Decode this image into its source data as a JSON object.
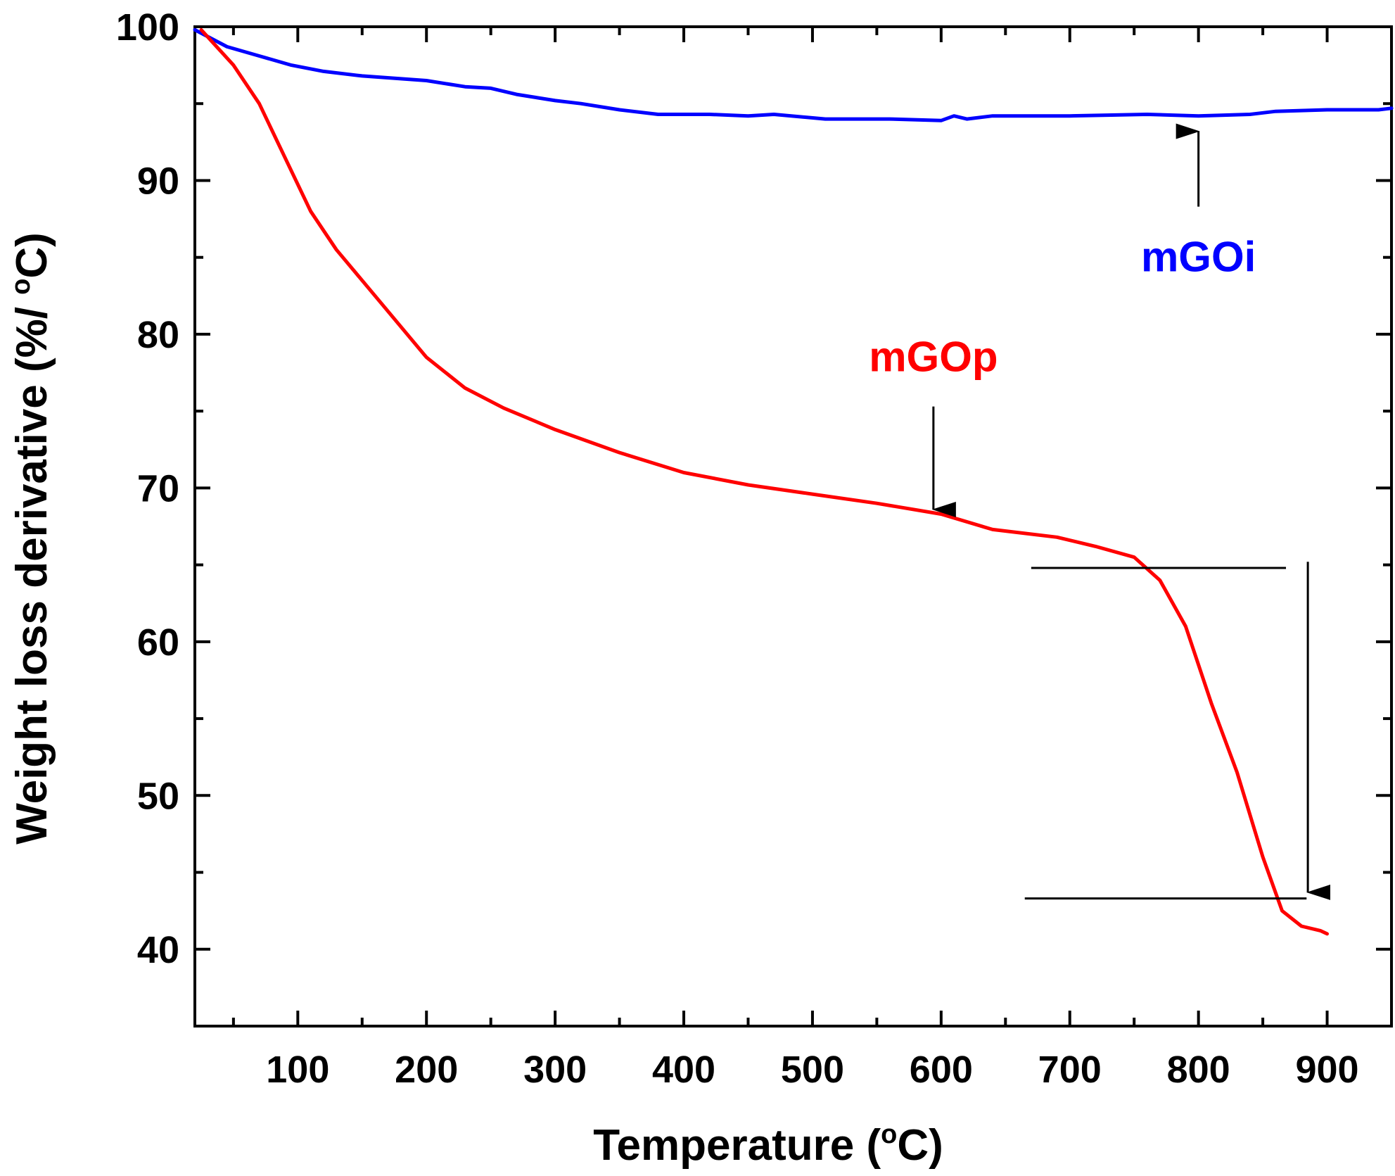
{
  "chart_data": {
    "type": "line",
    "title": "",
    "xlabel": {
      "main": "Temperature (",
      "sup": "o",
      "end": "C)"
    },
    "ylabel": {
      "main": "Weight loss derivative (%/ ",
      "sup": "o",
      "end": "C)"
    },
    "xlim": [
      20,
      950
    ],
    "ylim": [
      35,
      100
    ],
    "xticks": [
      100,
      200,
      300,
      400,
      500,
      600,
      700,
      800,
      900
    ],
    "xtick_labels": [
      "100",
      "200",
      "300",
      "400",
      "500",
      "600",
      "700",
      "800",
      "900"
    ],
    "yticks": [
      40,
      50,
      60,
      70,
      80,
      90,
      100
    ],
    "ytick_labels": [
      "40",
      "50",
      "60",
      "70",
      "80",
      "90",
      "100"
    ],
    "series": [
      {
        "name": "mGOi",
        "color": "#0000ff",
        "x": [
          20,
          45,
          70,
          95,
          120,
          150,
          200,
          230,
          250,
          270,
          300,
          320,
          350,
          380,
          420,
          450,
          470,
          510,
          560,
          600,
          610,
          620,
          640,
          700,
          760,
          800,
          840,
          860,
          900,
          940,
          950
        ],
        "y": [
          99.8,
          98.7,
          98.1,
          97.5,
          97.1,
          96.8,
          96.5,
          96.1,
          96.0,
          95.6,
          95.2,
          95.0,
          94.6,
          94.3,
          94.3,
          94.2,
          94.3,
          94.0,
          94.0,
          93.9,
          94.2,
          94.0,
          94.2,
          94.2,
          94.3,
          94.2,
          94.3,
          94.5,
          94.6,
          94.6,
          94.7
        ]
      },
      {
        "name": "mGOp",
        "color": "#ff0000",
        "x": [
          25,
          50,
          70,
          90,
          110,
          130,
          165,
          200,
          230,
          260,
          300,
          350,
          400,
          450,
          500,
          550,
          600,
          640,
          690,
          720,
          750,
          770,
          790,
          810,
          830,
          850,
          865,
          880,
          895,
          900
        ],
        "y": [
          99.8,
          97.5,
          95.0,
          91.5,
          88.0,
          85.5,
          82.0,
          78.5,
          76.5,
          75.2,
          73.8,
          72.3,
          71.0,
          70.2,
          69.6,
          69.0,
          68.3,
          67.3,
          66.8,
          66.2,
          65.5,
          64.0,
          61.0,
          56.0,
          51.5,
          46.0,
          42.5,
          41.5,
          41.2,
          41.0
        ]
      }
    ],
    "annotations": {
      "mGOi": {
        "text": "mGOi",
        "arrow_from": [
          800,
          88.3
        ],
        "arrow_to": [
          800,
          93.2
        ],
        "label_at": [
          800,
          85.0
        ]
      },
      "mGOp": {
        "text": "mGOp",
        "arrow_from": [
          594,
          75.3
        ],
        "arrow_to": [
          594,
          68.6
        ],
        "label_at": [
          594,
          78.5
        ]
      },
      "step_top_line": {
        "x1": 670,
        "x2": 868,
        "y": 64.8
      },
      "step_bottom_line": {
        "x1": 665,
        "x2": 884,
        "y": 43.3
      },
      "step_arrow": {
        "x": 885,
        "from": 65.2,
        "to": 43.7
      }
    }
  }
}
